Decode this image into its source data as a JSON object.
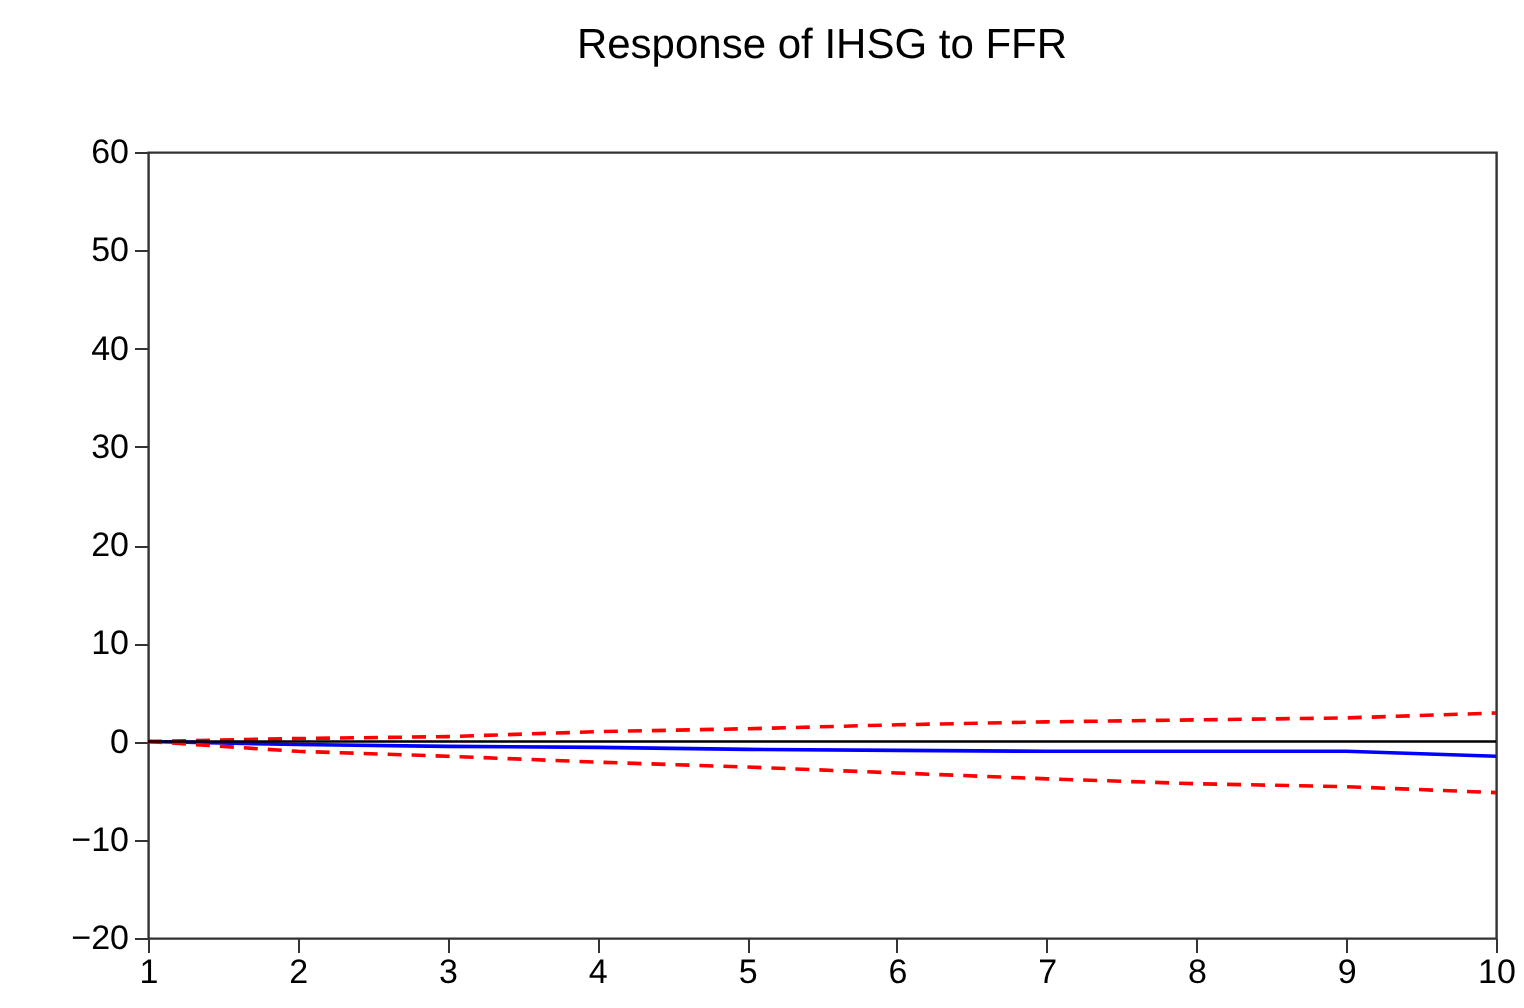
{
  "chart_data": {
    "type": "line",
    "title": "Response of IHSG to FFR",
    "x": [
      1,
      2,
      3,
      4,
      5,
      6,
      7,
      8,
      9,
      10
    ],
    "series": [
      {
        "color": "#0000ff",
        "line_style": "solid",
        "values": [
          0,
          -0.3,
          -0.5,
          -0.6,
          -0.8,
          -0.9,
          -1.0,
          -1.0,
          -1.0,
          -1.5
        ]
      },
      {
        "color": "#ff0000",
        "line_style": "dashed",
        "values": [
          0,
          0.3,
          0.5,
          1.0,
          1.3,
          1.7,
          2.0,
          2.2,
          2.4,
          2.9
        ]
      },
      {
        "color": "#ff0000",
        "line_style": "dashed",
        "values": [
          0,
          -1.0,
          -1.5,
          -2.1,
          -2.6,
          -3.2,
          -3.8,
          -4.3,
          -4.6,
          -5.2
        ]
      }
    ],
    "ref_lines": [
      {
        "axis": "y",
        "value": 0,
        "color": "#000000"
      }
    ],
    "xlim": [
      1,
      10
    ],
    "xticks": [
      1,
      2,
      3,
      4,
      5,
      6,
      7,
      8,
      9,
      10
    ],
    "ylim": [
      -20,
      60
    ],
    "yticks": [
      -20,
      -10,
      0,
      10,
      20,
      30,
      40,
      50,
      60
    ],
    "grid": false
  }
}
